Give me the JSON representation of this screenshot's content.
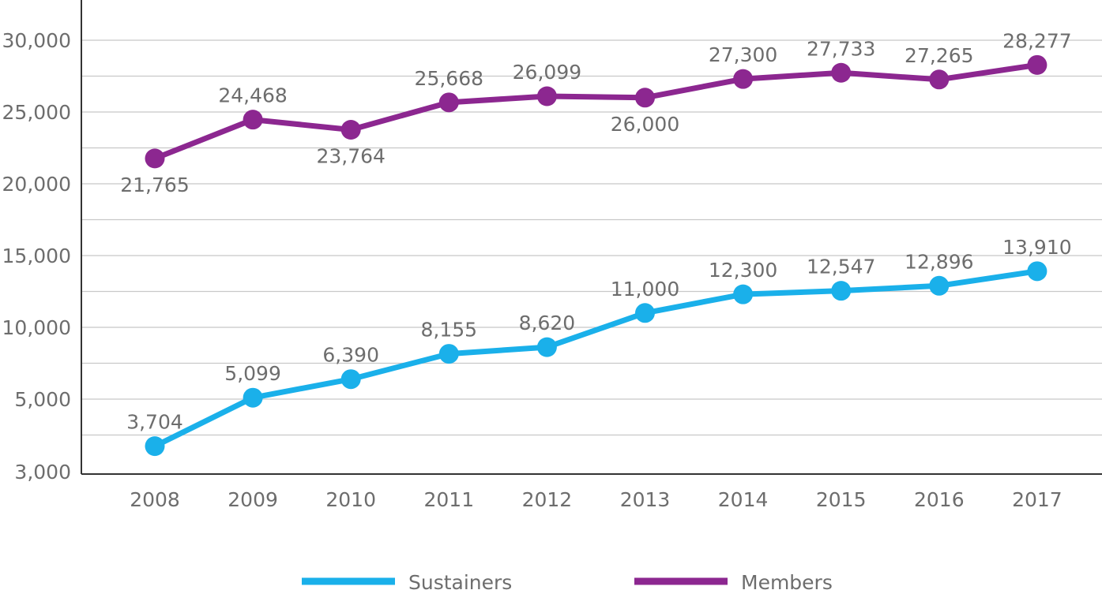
{
  "chart_data": {
    "type": "line",
    "title": "",
    "xlabel": "",
    "ylabel": "",
    "x": [
      "2008",
      "2009",
      "2010",
      "2011",
      "2012",
      "2013",
      "2014",
      "2015",
      "2016",
      "2017"
    ],
    "y_ticks": [
      3000,
      5000,
      10000,
      15000,
      20000,
      25000,
      30000
    ],
    "y_tick_labels": [
      "3,000",
      "5,000",
      "10,000",
      "15,000",
      "20,000",
      "25,000",
      "30,000"
    ],
    "grid": true,
    "legend_position": "bottom",
    "series": [
      {
        "name": "Sustainers",
        "color": "#1ab0ea",
        "values": [
          3704,
          5099,
          6390,
          8155,
          8620,
          11000,
          12300,
          12547,
          12896,
          13910
        ],
        "labels": [
          "3,704",
          "5,099",
          "6,390",
          "8,155",
          "8,620",
          "11,000",
          "12,300",
          "12,547",
          "12,896",
          "13,910"
        ],
        "label_side": [
          "above",
          "above",
          "above",
          "above",
          "above",
          "above",
          "above",
          "above",
          "above",
          "above"
        ]
      },
      {
        "name": "Members",
        "color": "#8c2790",
        "values": [
          21765,
          24468,
          23764,
          25668,
          26099,
          26000,
          27300,
          27733,
          27265,
          28277
        ],
        "labels": [
          "21,765",
          "24,468",
          "23,764",
          "25,668",
          "26,099",
          "26,000",
          "27,300",
          "27,733",
          "27,265",
          "28,277"
        ],
        "label_side": [
          "below",
          "above",
          "below",
          "above",
          "above",
          "below",
          "above",
          "above",
          "above",
          "above"
        ]
      }
    ]
  }
}
